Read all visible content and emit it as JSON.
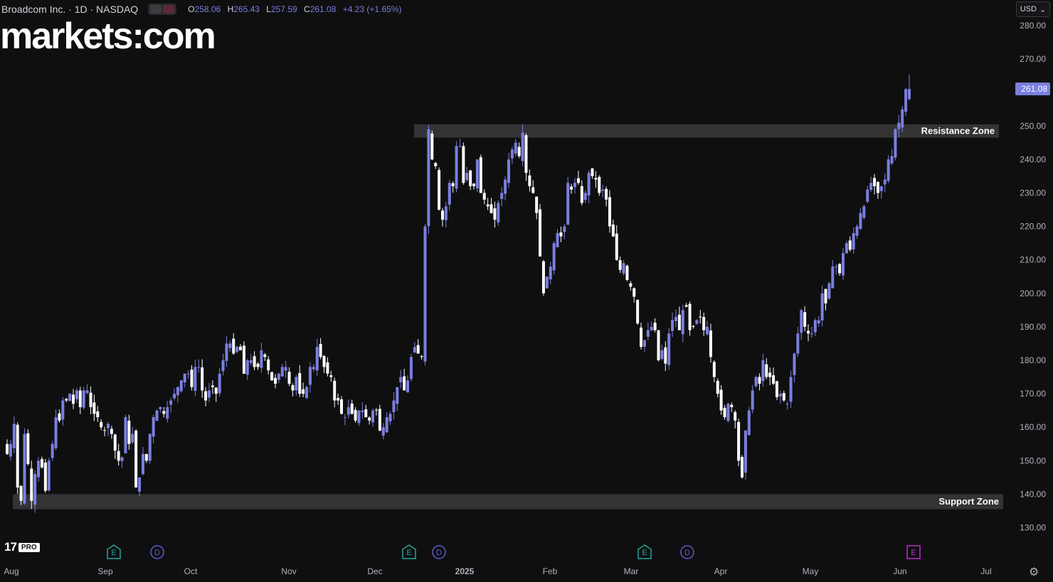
{
  "header": {
    "symbol": "Broadcom Inc. · 1D · NASDAQ",
    "open_label": "O",
    "open": "258.06",
    "high_label": "H",
    "high": "265.43",
    "low_label": "L",
    "low": "257.59",
    "close_label": "C",
    "close": "261.08",
    "change": "+4.23 (+1.65%)"
  },
  "brand": {
    "logo_text": "markets:com"
  },
  "currency": {
    "label": "USD"
  },
  "platform": {
    "tv": "17",
    "pro": "PRO"
  },
  "colors": {
    "bull": "#7b7fe0",
    "bear": "#ffffff",
    "background": "#0f0f10",
    "zone": "#3a3a3d",
    "earnings": "#26a69a",
    "dividend": "#5b5bd6",
    "upcoming_earnings": "#c026d3"
  },
  "chart_data": {
    "type": "candlestick",
    "ylim": [
      125,
      285
    ],
    "yticks": [
      130,
      140,
      150,
      160,
      170,
      180,
      190,
      200,
      210,
      220,
      230,
      240,
      250,
      260,
      270,
      280
    ],
    "ytick_labels": [
      "130.00",
      "140.00",
      "150.00",
      "160.00",
      "170.00",
      "180.00",
      "190.00",
      "200.00",
      "210.00",
      "220.00",
      "230.00",
      "240.00",
      "250.00",
      "260.00",
      "270.00",
      "280.00"
    ],
    "last_price_label": "261.08",
    "last_price": 261.08,
    "x_months": [
      "Aug",
      "Sep",
      "Oct",
      "Nov",
      "Dec",
      "2025",
      "Feb",
      "Mar",
      "Apr",
      "May",
      "Jun",
      "Jul"
    ],
    "zones": [
      {
        "label": "Resistance Zone",
        "low": 246.5,
        "high": 250.5,
        "start": "Dec"
      },
      {
        "label": "Support Zone",
        "low": 135.5,
        "high": 140,
        "start": "Aug"
      }
    ],
    "events": [
      {
        "type": "earnings",
        "label": "E",
        "near": "Sep"
      },
      {
        "type": "dividend",
        "label": "D",
        "near": "Sep"
      },
      {
        "type": "earnings",
        "label": "E",
        "near": "Dec"
      },
      {
        "type": "dividend",
        "label": "D",
        "near": "Dec"
      },
      {
        "type": "earnings",
        "label": "E",
        "near": "Mar"
      },
      {
        "type": "dividend",
        "label": "D",
        "near": "Mar"
      },
      {
        "type": "earnings",
        "label": "E",
        "near": "Jun",
        "upcoming": true
      }
    ],
    "closes": [
      152,
      155,
      161,
      142,
      138,
      158,
      149,
      138,
      146,
      150,
      148,
      141,
      150,
      155,
      163,
      162,
      168,
      168,
      170,
      167,
      171,
      166,
      171,
      171,
      166,
      164,
      163,
      160,
      159,
      161,
      158,
      153,
      150,
      151,
      163,
      155,
      158,
      142,
      145,
      152,
      150,
      158,
      163,
      165,
      166,
      164,
      166,
      168,
      170,
      172,
      174,
      176,
      176,
      172,
      178,
      178,
      171,
      168,
      171,
      172,
      170,
      176,
      180,
      185,
      185,
      182,
      184,
      183,
      176,
      180,
      180,
      178,
      178,
      183,
      181,
      177,
      174,
      173,
      176,
      178,
      178,
      173,
      171,
      175,
      170,
      170,
      172,
      178,
      178,
      184,
      181,
      178,
      176,
      175,
      168,
      168,
      164,
      163,
      166,
      164,
      162,
      165,
      165,
      163,
      162,
      165,
      165,
      159,
      160,
      163,
      164,
      168,
      172,
      175,
      171,
      174,
      181,
      184,
      182,
      181,
      220,
      249,
      240,
      238,
      225,
      222,
      226,
      233,
      232,
      244,
      244,
      233,
      236,
      232,
      232,
      240,
      230,
      228,
      226,
      224,
      222,
      227,
      230,
      234,
      240,
      243,
      245,
      241,
      248,
      236,
      232,
      230,
      224,
      211,
      200,
      205,
      208,
      215,
      218,
      217,
      220,
      233,
      231,
      233,
      233,
      227,
      230,
      236,
      235,
      234,
      230,
      231,
      228,
      220,
      217,
      210,
      207,
      209,
      204,
      202,
      199,
      191,
      184,
      186,
      189,
      190,
      189,
      180,
      183,
      179,
      188,
      192,
      193,
      189,
      195,
      196,
      189,
      190,
      192,
      193,
      189,
      190,
      181,
      175,
      170,
      165,
      163,
      167,
      166,
      162,
      150,
      145,
      159,
      165,
      171,
      175,
      173,
      180,
      175,
      175,
      173,
      169,
      170,
      168,
      167,
      175,
      182,
      188,
      195,
      190,
      188,
      188,
      192,
      192,
      200,
      197,
      203,
      208,
      208,
      206,
      212,
      215,
      213,
      218,
      220,
      224,
      226,
      231,
      233,
      232,
      230,
      232,
      234,
      240,
      241,
      249,
      251,
      255,
      261,
      261.08
    ]
  }
}
